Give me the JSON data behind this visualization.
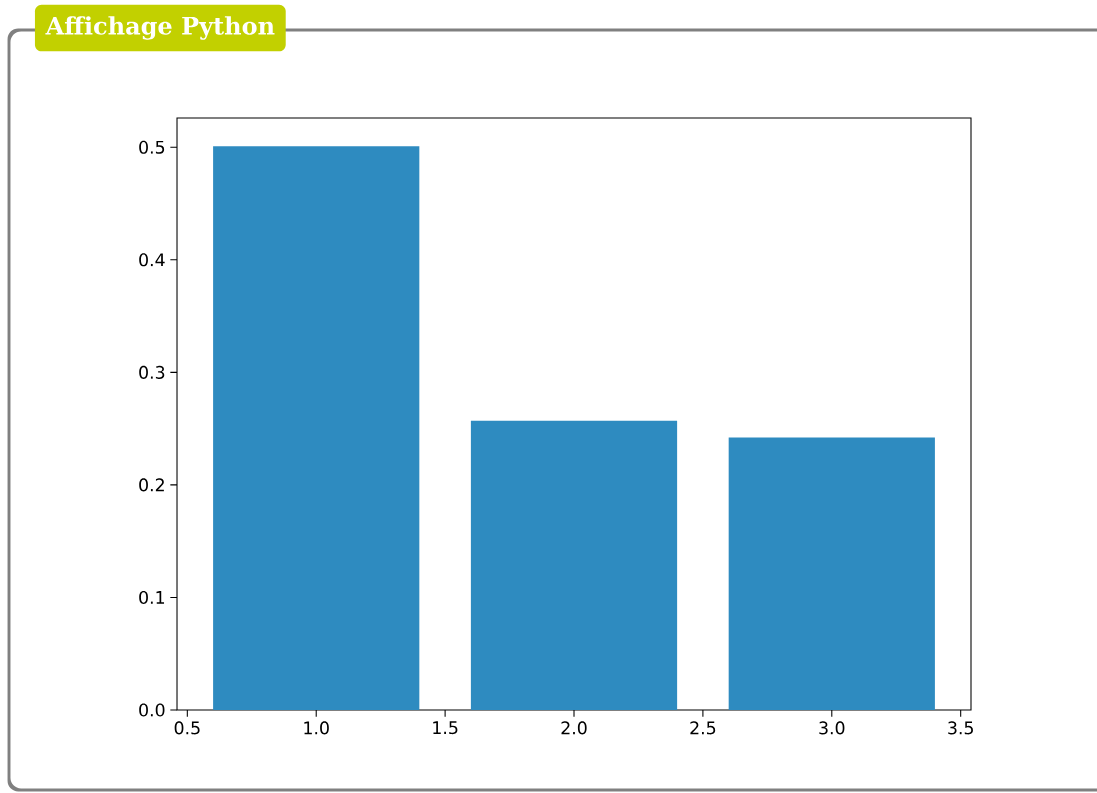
{
  "chart_data": {
    "type": "bar",
    "title": "Affichage Python",
    "x": [
      1,
      2,
      3
    ],
    "values": [
      0.501,
      0.257,
      0.242
    ],
    "color": "#2e8bc0",
    "xlim": [
      0.46,
      3.54
    ],
    "xticks": [
      0.5,
      {
        "value": 1,
        "label": "1.0"
      },
      1.5,
      {
        "value": 2,
        "label": "2.0"
      },
      2.5,
      {
        "value": 3,
        "label": "3.0"
      },
      3.5
    ],
    "ylim": [
      0,
      0.526
    ],
    "yticks": [
      {
        "value": 0,
        "label": "0.0"
      },
      0.1,
      0.2,
      0.3,
      0.4,
      0.5
    ],
    "grid": false
  }
}
